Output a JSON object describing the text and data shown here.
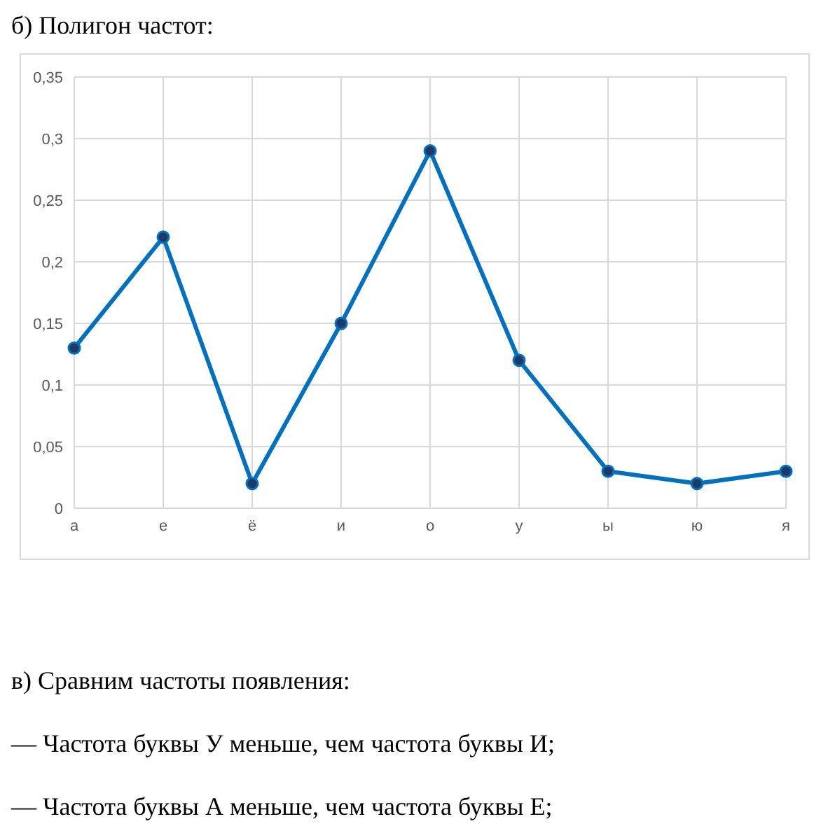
{
  "chart_data": {
    "type": "line",
    "title": "б) Полигон частот:",
    "categories": [
      "а",
      "е",
      "ё",
      "и",
      "о",
      "у",
      "ы",
      "ю",
      "я"
    ],
    "series": [
      {
        "color": "#0070c0",
        "values": [
          0.13,
          0.22,
          0.02,
          0.15,
          0.29,
          0.12,
          0.03,
          0.02,
          0.03
        ]
      }
    ],
    "ylim": [
      0,
      0.35
    ],
    "yticks": [
      0,
      {
        "value": 0.05,
        "label": "0,05"
      },
      {
        "value": 0.1,
        "label": "0,1"
      },
      {
        "value": 0.15,
        "label": "0,15"
      },
      {
        "value": 0.2,
        "label": "0,2"
      },
      {
        "value": 0.25,
        "label": "0,25"
      },
      {
        "value": 0.3,
        "label": "0,3"
      },
      {
        "value": 0.35,
        "label": "0,35"
      }
    ],
    "grid": true,
    "marker": "circle",
    "line_style": "solid",
    "annotations": [
      "в) Сравним частоты появления:",
      "— Частота буквы У меньше, чем частота буквы И;",
      "— Частота буквы А меньше, чем частота буквы Е;"
    ]
  }
}
